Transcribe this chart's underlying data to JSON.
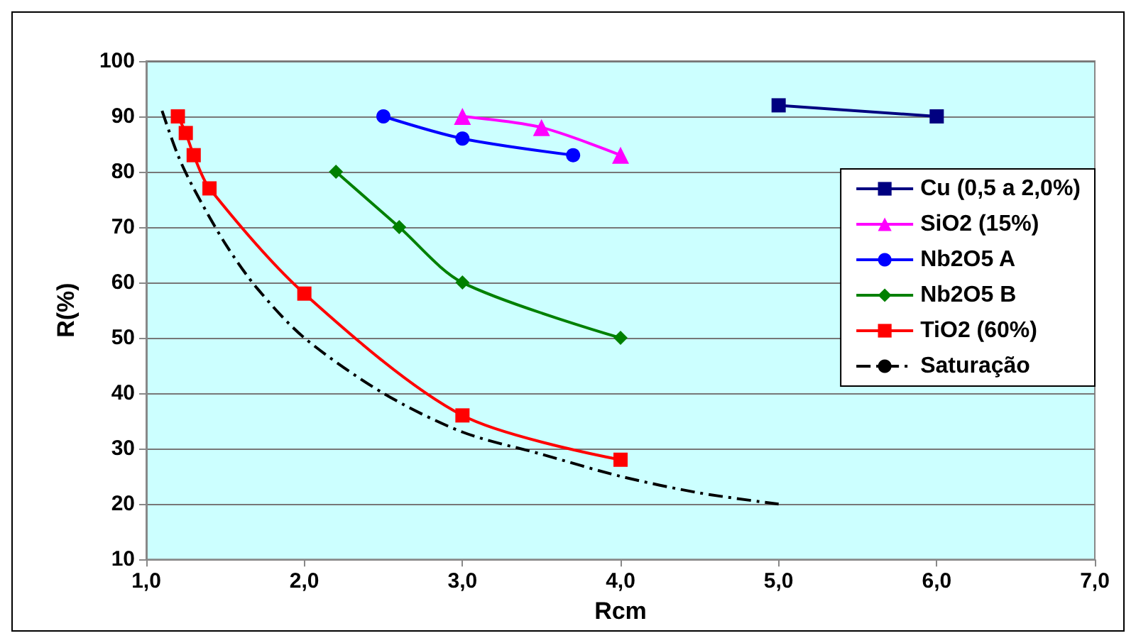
{
  "chart_data": {
    "type": "line",
    "xlabel": "Rcm",
    "ylabel": "R(%)",
    "xlim": [
      1,
      7
    ],
    "ylim": [
      10,
      100
    ],
    "xticks": [
      {
        "value": 1,
        "label": "1,0"
      },
      {
        "value": 2,
        "label": "2,0"
      },
      {
        "value": 3,
        "label": "3,0"
      },
      {
        "value": 4,
        "label": "4,0"
      },
      {
        "value": 5,
        "label": "5,0"
      },
      {
        "value": 6,
        "label": "6,0"
      },
      {
        "value": 7,
        "label": "7,0"
      }
    ],
    "yticks": [
      10,
      20,
      30,
      40,
      50,
      60,
      70,
      80,
      90,
      100
    ],
    "grid": "y",
    "legend": "right",
    "series": [
      {
        "name": "Cu (0,5 a 2,0%)",
        "color": "#000080",
        "marker": "square",
        "x": [
          5,
          6
        ],
        "values": [
          92,
          90
        ]
      },
      {
        "name": "SiO2 (15%)",
        "color": "#ff00ff",
        "marker": "triangle",
        "x": [
          3,
          3.5,
          4
        ],
        "values": [
          90,
          88,
          83
        ]
      },
      {
        "name": "Nb2O5 A",
        "color": "#0000ff",
        "marker": "circle",
        "x": [
          2.5,
          3,
          3.7
        ],
        "values": [
          90,
          86,
          83
        ]
      },
      {
        "name": "Nb2O5 B",
        "color": "#008000",
        "marker": "diamond",
        "x": [
          2.2,
          2.6,
          3,
          4
        ],
        "values": [
          80,
          70,
          60,
          50
        ]
      },
      {
        "name": "TiO2 (60%)",
        "color": "#ff0000",
        "marker": "square",
        "x": [
          1.2,
          1.25,
          1.3,
          1.4,
          2,
          3,
          4
        ],
        "values": [
          90,
          87,
          83,
          77,
          58,
          36,
          28
        ]
      },
      {
        "name": "Saturação",
        "color": "#000000",
        "marker": "none",
        "line_style": "dashed",
        "x": [
          1.1,
          1.2,
          1.3,
          1.5,
          1.7,
          2,
          2.5,
          3,
          3.5,
          4,
          4.5,
          5
        ],
        "values": [
          91,
          83,
          77,
          67,
          59,
          50,
          40,
          33,
          29,
          25,
          22,
          20
        ]
      }
    ]
  }
}
